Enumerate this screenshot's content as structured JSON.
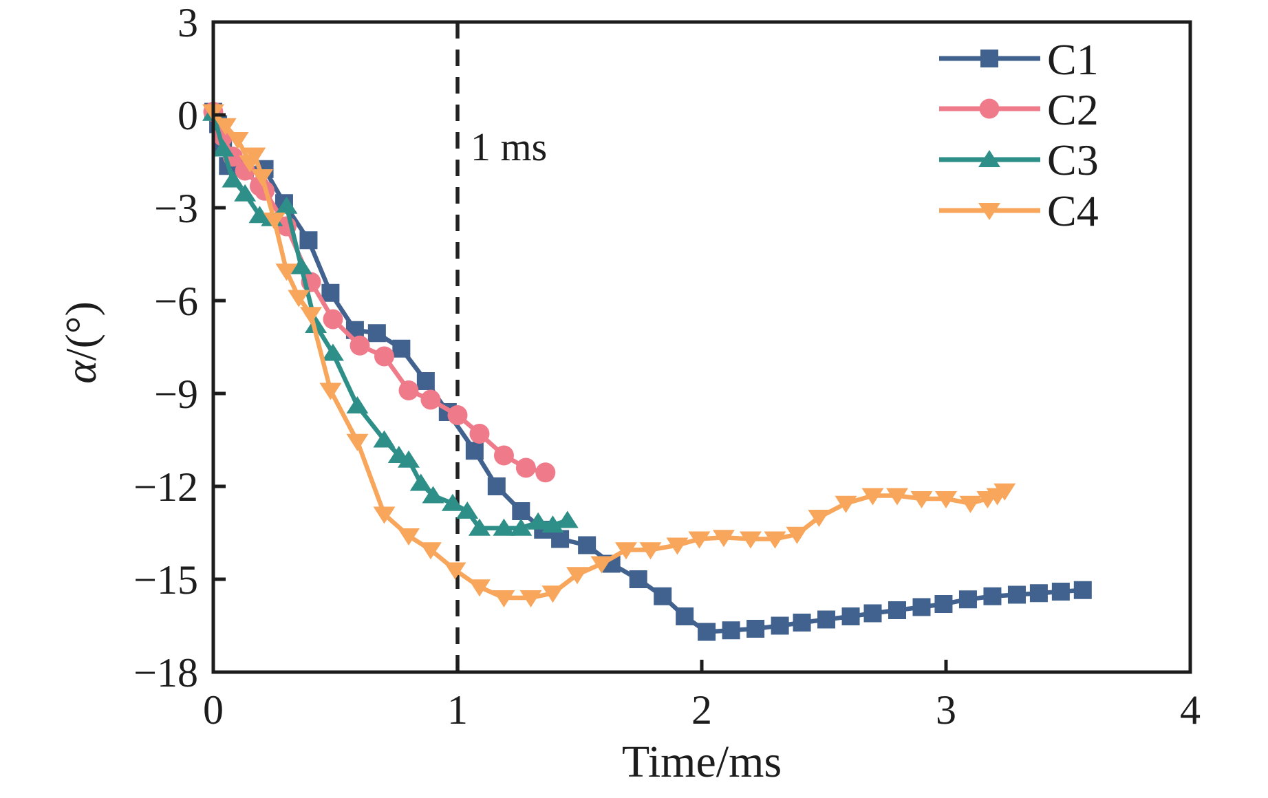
{
  "figure": {
    "x_label": "Time/ms",
    "y_label_symbol": "α",
    "y_label_unit": "/(°)",
    "annotation": "1 ms"
  },
  "chart_data": {
    "type": "line",
    "title": "",
    "xlabel": "Time/ms",
    "ylabel": "α/(°)",
    "xlim": [
      0,
      4
    ],
    "ylim": [
      -18,
      3
    ],
    "x_ticks": [
      0,
      1,
      2,
      3,
      4
    ],
    "y_ticks": [
      3,
      0,
      -3,
      -6,
      -9,
      -12,
      -15,
      -18
    ],
    "grid": false,
    "legend_position": "upper-right",
    "axis_color": "#1c1c1c",
    "reference_line": {
      "x": 1.0,
      "label": "1 ms",
      "style": "dashed",
      "color": "#222222"
    },
    "series": [
      {
        "name": "C1",
        "color": "#41618E",
        "marker": "square",
        "x": [
          0,
          0.02,
          0.04,
          0.06,
          0.13,
          0.21,
          0.29,
          0.39,
          0.48,
          0.58,
          0.67,
          0.77,
          0.87,
          0.96,
          1.07,
          1.16,
          1.26,
          1.35,
          1.42,
          1.53,
          1.63,
          1.74,
          1.84,
          1.93,
          2.02,
          2.12,
          2.22,
          2.32,
          2.41,
          2.51,
          2.61,
          2.7,
          2.8,
          2.9,
          2.99,
          3.09,
          3.19,
          3.29,
          3.38,
          3.47,
          3.56
        ],
        "y": [
          0.1,
          -0.3,
          -0.9,
          -1.65,
          -1.7,
          -1.75,
          -2.85,
          -4.05,
          -5.75,
          -6.95,
          -7.05,
          -7.55,
          -8.6,
          -9.6,
          -10.85,
          -12.0,
          -12.8,
          -13.4,
          -13.7,
          -13.9,
          -14.5,
          -15.0,
          -15.55,
          -16.2,
          -16.7,
          -16.65,
          -16.6,
          -16.5,
          -16.4,
          -16.3,
          -16.2,
          -16.1,
          -16.0,
          -15.9,
          -15.8,
          -15.65,
          -15.55,
          -15.5,
          -15.45,
          -15.4,
          -15.35
        ]
      },
      {
        "name": "C2",
        "color": "#EF7A89",
        "marker": "circle",
        "x": [
          0,
          0.04,
          0.08,
          0.13,
          0.19,
          0.21,
          0.3,
          0.4,
          0.49,
          0.6,
          0.7,
          0.8,
          0.89,
          1.0,
          1.09,
          1.19,
          1.28,
          1.36
        ],
        "y": [
          0.1,
          -0.7,
          -1.35,
          -1.8,
          -2.3,
          -2.45,
          -3.6,
          -5.4,
          -6.6,
          -7.45,
          -7.8,
          -8.9,
          -9.2,
          -9.7,
          -10.3,
          -11.0,
          -11.4,
          -11.55
        ]
      },
      {
        "name": "C3",
        "color": "#2E8F89",
        "marker": "triangle-up",
        "x": [
          0,
          0.04,
          0.08,
          0.13,
          0.19,
          0.24,
          0.3,
          0.36,
          0.42,
          0.49,
          0.59,
          0.7,
          0.76,
          0.8,
          0.85,
          0.9,
          0.98,
          1.04,
          1.09,
          1.19,
          1.26,
          1.33,
          1.39,
          1.45
        ],
        "y": [
          0.05,
          -1.1,
          -2.1,
          -2.55,
          -3.25,
          -3.35,
          -2.95,
          -4.9,
          -6.8,
          -7.7,
          -9.4,
          -10.5,
          -11.0,
          -11.15,
          -11.9,
          -12.3,
          -12.55,
          -12.8,
          -13.35,
          -13.35,
          -13.35,
          -13.15,
          -13.25,
          -13.1
        ]
      },
      {
        "name": "C4",
        "color": "#F7A65B",
        "marker": "triangle-down",
        "x": [
          0,
          0.05,
          0.1,
          0.15,
          0.17,
          0.2,
          0.25,
          0.3,
          0.35,
          0.4,
          0.48,
          0.59,
          0.7,
          0.8,
          0.89,
          0.99,
          1.09,
          1.19,
          1.3,
          1.39,
          1.49,
          1.59,
          1.69,
          1.79,
          1.9,
          1.99,
          2.09,
          2.2,
          2.3,
          2.39,
          2.48,
          2.59,
          2.7,
          2.8,
          2.9,
          3.0,
          3.1,
          3.17,
          3.21,
          3.24
        ],
        "y": [
          0.1,
          -0.35,
          -0.8,
          -1.55,
          -1.3,
          -2.0,
          -3.4,
          -5.05,
          -5.9,
          -6.45,
          -8.9,
          -10.55,
          -12.9,
          -13.6,
          -14.05,
          -14.7,
          -15.25,
          -15.6,
          -15.6,
          -15.45,
          -14.85,
          -14.5,
          -14.05,
          -14.05,
          -13.9,
          -13.7,
          -13.65,
          -13.7,
          -13.7,
          -13.55,
          -13.0,
          -12.55,
          -12.3,
          -12.3,
          -12.4,
          -12.4,
          -12.55,
          -12.4,
          -12.3,
          -12.15
        ]
      }
    ]
  }
}
